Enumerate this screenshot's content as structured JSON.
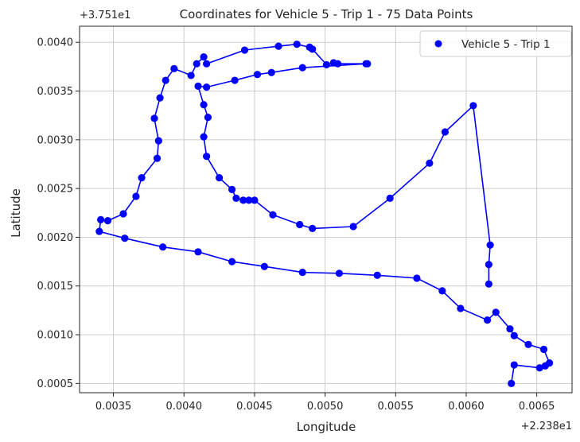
{
  "chart_data": {
    "type": "scatter",
    "title": "Coordinates for Vehicle 5 - Trip 1 - 75 Data Points",
    "xlabel": "Longitude",
    "ylabel": "Latitude",
    "x_offset_label": "+2.238e1",
    "y_offset_label": "+3.751e1",
    "x_offset": 22.38,
    "y_offset": 37.51,
    "xlim": [
      0.00326,
      0.00675
    ],
    "ylim": [
      0.000405,
      0.004165
    ],
    "xticks": [
      0.0035,
      0.004,
      0.0045,
      0.005,
      0.0055,
      0.006,
      0.0065
    ],
    "xtick_labels": [
      "0.0035",
      "0.0040",
      "0.0045",
      "0.0050",
      "0.0055",
      "0.0060",
      "0.0065"
    ],
    "yticks": [
      0.0005,
      0.001,
      0.0015,
      0.002,
      0.0025,
      0.003,
      0.0035,
      0.004
    ],
    "ytick_labels": [
      "0.0005",
      "0.0010",
      "0.0015",
      "0.0020",
      "0.0025",
      "0.0030",
      "0.0035",
      "0.0040"
    ],
    "grid": true,
    "legend_position": "top-right",
    "series": [
      {
        "name": "Vehicle 5 - Trip 1",
        "color": "#0000ff",
        "x": [
          0.00632,
          0.00634,
          0.00652,
          0.00656,
          0.00659,
          0.00655,
          0.00644,
          0.00634,
          0.00631,
          0.00621,
          0.00615,
          0.00596,
          0.00583,
          0.00565,
          0.00537,
          0.0051,
          0.00484,
          0.00457,
          0.00434,
          0.0041,
          0.00385,
          0.00358,
          0.0034,
          0.00341,
          0.00346,
          0.00357,
          0.00366,
          0.0037,
          0.00381,
          0.00382,
          0.00379,
          0.00383,
          0.00387,
          0.00393,
          0.00405,
          0.00409,
          0.00414,
          0.00416,
          0.00443,
          0.00467,
          0.0048,
          0.00489,
          0.00491,
          0.00501,
          0.00506,
          0.00509,
          0.0053,
          0.00529,
          0.00484,
          0.00462,
          0.00452,
          0.00436,
          0.00416,
          0.0041,
          0.00414,
          0.00417,
          0.00414,
          0.00416,
          0.00425,
          0.00434,
          0.00437,
          0.00442,
          0.00446,
          0.0045,
          0.00463,
          0.00482,
          0.00491,
          0.0052,
          0.00546,
          0.00574,
          0.00585,
          0.00605,
          0.00617,
          0.00616,
          0.00616
        ],
        "y": [
          0.0005,
          0.00069,
          0.00066,
          0.00068,
          0.00071,
          0.00085,
          0.0009,
          0.00099,
          0.00106,
          0.00123,
          0.00115,
          0.00127,
          0.00145,
          0.00158,
          0.00161,
          0.00163,
          0.00164,
          0.0017,
          0.00175,
          0.00185,
          0.0019,
          0.00199,
          0.00206,
          0.00218,
          0.00217,
          0.00224,
          0.00242,
          0.00261,
          0.00281,
          0.00299,
          0.00322,
          0.00343,
          0.00361,
          0.00373,
          0.00366,
          0.00378,
          0.00385,
          0.00378,
          0.00392,
          0.00396,
          0.00398,
          0.00395,
          0.00393,
          0.00377,
          0.00379,
          0.00378,
          0.00378,
          0.00378,
          0.00374,
          0.00369,
          0.00367,
          0.00361,
          0.00354,
          0.00355,
          0.00336,
          0.00323,
          0.00303,
          0.00283,
          0.00261,
          0.00249,
          0.0024,
          0.00238,
          0.00238,
          0.00238,
          0.00223,
          0.00213,
          0.00209,
          0.00211,
          0.0024,
          0.00276,
          0.00308,
          0.00335,
          0.00192,
          0.00172,
          0.00152
        ]
      }
    ]
  }
}
